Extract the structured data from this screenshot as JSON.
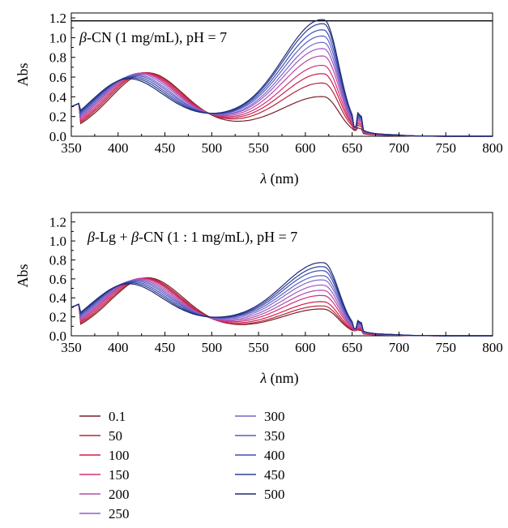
{
  "chart_data": [
    {
      "type": "line",
      "title_parts": [
        "β",
        "-CN (1 mg/mL), pH = 7"
      ],
      "xlabel_parts": [
        "λ",
        " (nm)"
      ],
      "ylabel": "Abs",
      "xlim": [
        350,
        800
      ],
      "ylim": [
        0,
        1.25
      ],
      "xticks": [
        350,
        400,
        450,
        500,
        550,
        600,
        650,
        700,
        750,
        800
      ],
      "yticks": [
        0.0,
        0.2,
        0.4,
        0.6,
        0.8,
        1.0,
        1.2
      ],
      "ytick_labels": [
        "0.0",
        "0.2",
        "0.4",
        "0.6",
        "0.8",
        "1.0",
        "1.2"
      ],
      "reference_line_y": 1.17,
      "series": [
        {
          "name": "0.1",
          "peak_abs_at_430": 0.595,
          "peak_abs_at_620": 0.38,
          "min_abs_at_530": 0.17
        },
        {
          "name": "50",
          "peak_abs_at_430": 0.59,
          "peak_abs_at_620": 0.51,
          "min_abs_at_530": 0.2
        },
        {
          "name": "100",
          "peak_abs_at_430": 0.585,
          "peak_abs_at_620": 0.6,
          "min_abs_at_530": 0.22
        },
        {
          "name": "150",
          "peak_abs_at_430": 0.58,
          "peak_abs_at_620": 0.68,
          "min_abs_at_530": 0.24
        },
        {
          "name": "200",
          "peak_abs_at_430": 0.575,
          "peak_abs_at_620": 0.77,
          "min_abs_at_530": 0.26
        },
        {
          "name": "250",
          "peak_abs_at_430": 0.565,
          "peak_abs_at_620": 0.84,
          "min_abs_at_530": 0.28
        },
        {
          "name": "300",
          "peak_abs_at_430": 0.555,
          "peak_abs_at_620": 0.9,
          "min_abs_at_530": 0.29
        },
        {
          "name": "350",
          "peak_abs_at_430": 0.545,
          "peak_abs_at_620": 0.96,
          "min_abs_at_530": 0.31
        },
        {
          "name": "400",
          "peak_abs_at_430": 0.535,
          "peak_abs_at_620": 1.02,
          "min_abs_at_530": 0.32
        },
        {
          "name": "450",
          "peak_abs_at_430": 0.525,
          "peak_abs_at_620": 1.08,
          "min_abs_at_530": 0.33
        },
        {
          "name": "500",
          "peak_abs_at_430": 0.515,
          "peak_abs_at_620": 1.12,
          "min_abs_at_530": 0.34
        }
      ]
    },
    {
      "type": "line",
      "title_parts": [
        "β",
        "-Lg + ",
        "β",
        "-CN (1 : 1 mg/mL), pH = 7"
      ],
      "xlabel_parts": [
        "λ",
        " (nm)"
      ],
      "ylabel": "Abs",
      "xlim": [
        350,
        800
      ],
      "ylim": [
        0,
        1.3
      ],
      "xticks": [
        350,
        400,
        450,
        500,
        550,
        600,
        650,
        700,
        750,
        800
      ],
      "yticks": [
        0.0,
        0.2,
        0.4,
        0.6,
        0.8,
        1.0,
        1.2
      ],
      "ytick_labels": [
        "0.0",
        "0.2",
        "0.4",
        "0.6",
        "0.8",
        "1.0",
        "1.2"
      ],
      "series": [
        {
          "name": "0.1",
          "peak_abs_at_430": 0.575,
          "peak_abs_at_620": 0.27,
          "min_abs_at_530": 0.13
        },
        {
          "name": "50",
          "peak_abs_at_430": 0.57,
          "peak_abs_at_620": 0.3,
          "min_abs_at_530": 0.14
        },
        {
          "name": "100",
          "peak_abs_at_430": 0.565,
          "peak_abs_at_620": 0.34,
          "min_abs_at_530": 0.16
        },
        {
          "name": "150",
          "peak_abs_at_430": 0.56,
          "peak_abs_at_620": 0.4,
          "min_abs_at_530": 0.18
        },
        {
          "name": "200",
          "peak_abs_at_430": 0.55,
          "peak_abs_at_620": 0.45,
          "min_abs_at_530": 0.2
        },
        {
          "name": "250",
          "peak_abs_at_430": 0.54,
          "peak_abs_at_620": 0.5,
          "min_abs_at_530": 0.22
        },
        {
          "name": "300",
          "peak_abs_at_430": 0.53,
          "peak_abs_at_620": 0.55,
          "min_abs_at_530": 0.24
        },
        {
          "name": "350",
          "peak_abs_at_430": 0.52,
          "peak_abs_at_620": 0.59,
          "min_abs_at_530": 0.26
        },
        {
          "name": "400",
          "peak_abs_at_430": 0.51,
          "peak_abs_at_620": 0.64,
          "min_abs_at_530": 0.27
        },
        {
          "name": "450",
          "peak_abs_at_430": 0.5,
          "peak_abs_at_620": 0.68,
          "min_abs_at_530": 0.28
        },
        {
          "name": "500",
          "peak_abs_at_430": 0.49,
          "peak_abs_at_620": 0.72,
          "min_abs_at_530": 0.29
        }
      ]
    }
  ],
  "legend": {
    "items": [
      "0.1",
      "50",
      "100",
      "150",
      "200",
      "250",
      "300",
      "350",
      "400",
      "450",
      "500"
    ],
    "colors": [
      "#7a1f28",
      "#b3263a",
      "#cf1f4a",
      "#d0307a",
      "#b54aa6",
      "#9a5cc2",
      "#7b66c6",
      "#5a5fc0",
      "#3e4fb4",
      "#2e3d9b",
      "#1e2a6e"
    ]
  }
}
